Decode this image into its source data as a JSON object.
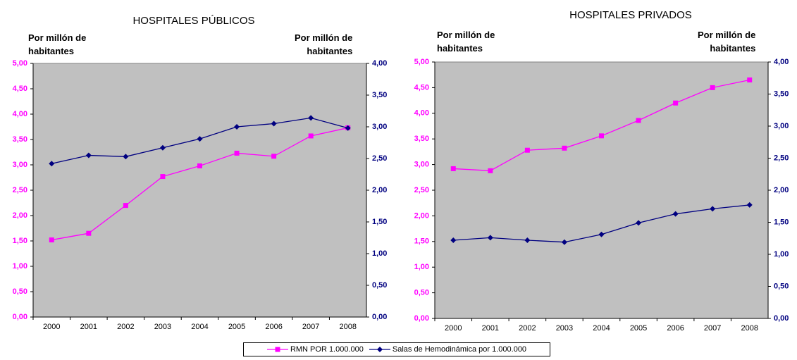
{
  "chart_data": [
    {
      "type": "line",
      "title": "HOSPITALES PÚBLICOS",
      "y_label": "Por millón de\nhabitantes",
      "y2_label": "Por millón de\nhabitantes",
      "categories": [
        "2000",
        "2001",
        "2002",
        "2003",
        "2004",
        "2005",
        "2006",
        "2007",
        "2008"
      ],
      "ylim": [
        0,
        5
      ],
      "yticks": [
        {
          "value": 0,
          "label": "0,00"
        },
        {
          "value": 0.5,
          "label": "0,50"
        },
        {
          "value": 1,
          "label": "1,00"
        },
        {
          "value": 1.5,
          "label": "1,50"
        },
        {
          "value": 2,
          "label": "2,00"
        },
        {
          "value": 2.5,
          "label": "2,50"
        },
        {
          "value": 3,
          "label": "3,00"
        },
        {
          "value": 3.5,
          "label": "3,50"
        },
        {
          "value": 4,
          "label": "4,00"
        },
        {
          "value": 4.5,
          "label": "4,50"
        },
        {
          "value": 5,
          "label": "5,00"
        }
      ],
      "y2lim": [
        0,
        4
      ],
      "y2ticks": [
        {
          "value": 0,
          "label": "0,00"
        },
        {
          "value": 0.5,
          "label": "0,50"
        },
        {
          "value": 1,
          "label": "1,00"
        },
        {
          "value": 1.5,
          "label": "1,50"
        },
        {
          "value": 2,
          "label": "2,00"
        },
        {
          "value": 2.5,
          "label": "2,50"
        },
        {
          "value": 3,
          "label": "3,00"
        },
        {
          "value": 3.5,
          "label": "3,50"
        },
        {
          "value": 4,
          "label": "4,00"
        }
      ],
      "series": [
        {
          "name": "RMN POR 1.000.000",
          "color": "#ff00ff",
          "marker": "square",
          "values": [
            1.52,
            1.65,
            2.2,
            2.77,
            2.98,
            3.23,
            3.17,
            3.57,
            3.73
          ]
        },
        {
          "name": "Salas de Hemodinámica por 1.000.000",
          "color": "#000080",
          "marker": "diamond",
          "axis": "y2",
          "values": [
            2.42,
            2.55,
            2.53,
            2.67,
            2.81,
            3.0,
            3.05,
            3.14,
            2.98
          ]
        }
      ]
    },
    {
      "type": "line",
      "title": "HOSPITALES PRIVADOS",
      "y_label": "Por millón de\nhabitantes",
      "y2_label": "Por millón de\nhabitantes",
      "categories": [
        "2000",
        "2001",
        "2002",
        "2003",
        "2004",
        "2005",
        "2006",
        "2007",
        "2008"
      ],
      "ylim": [
        0,
        5
      ],
      "yticks": [
        {
          "value": 0,
          "label": "0,00"
        },
        {
          "value": 0.5,
          "label": "0,50"
        },
        {
          "value": 1,
          "label": "1,00"
        },
        {
          "value": 1.5,
          "label": "1,50"
        },
        {
          "value": 2,
          "label": "2,00"
        },
        {
          "value": 2.5,
          "label": "2,50"
        },
        {
          "value": 3,
          "label": "3,00"
        },
        {
          "value": 3.5,
          "label": "3,50"
        },
        {
          "value": 4,
          "label": "4,00"
        },
        {
          "value": 4.5,
          "label": "4,50"
        },
        {
          "value": 5,
          "label": "5,00"
        }
      ],
      "y2lim": [
        0,
        4
      ],
      "y2ticks": [
        {
          "value": 0,
          "label": "0,00"
        },
        {
          "value": 0.5,
          "label": "0,50"
        },
        {
          "value": 1,
          "label": "1,00"
        },
        {
          "value": 1.5,
          "label": "1,50"
        },
        {
          "value": 2,
          "label": "2,00"
        },
        {
          "value": 2.5,
          "label": "2,50"
        },
        {
          "value": 3,
          "label": "3,00"
        },
        {
          "value": 3.5,
          "label": "3,50"
        },
        {
          "value": 4,
          "label": "4,00"
        }
      ],
      "series": [
        {
          "color": "#ff00ff",
          "marker": "square",
          "values": [
            2.92,
            2.88,
            3.28,
            3.32,
            3.56,
            3.86,
            4.2,
            4.5,
            4.65
          ]
        },
        {
          "color": "#000080",
          "marker": "diamond",
          "axis": "y2",
          "values": [
            1.22,
            1.26,
            1.22,
            1.19,
            1.31,
            1.49,
            1.63,
            1.71,
            1.77
          ]
        }
      ]
    }
  ]
}
